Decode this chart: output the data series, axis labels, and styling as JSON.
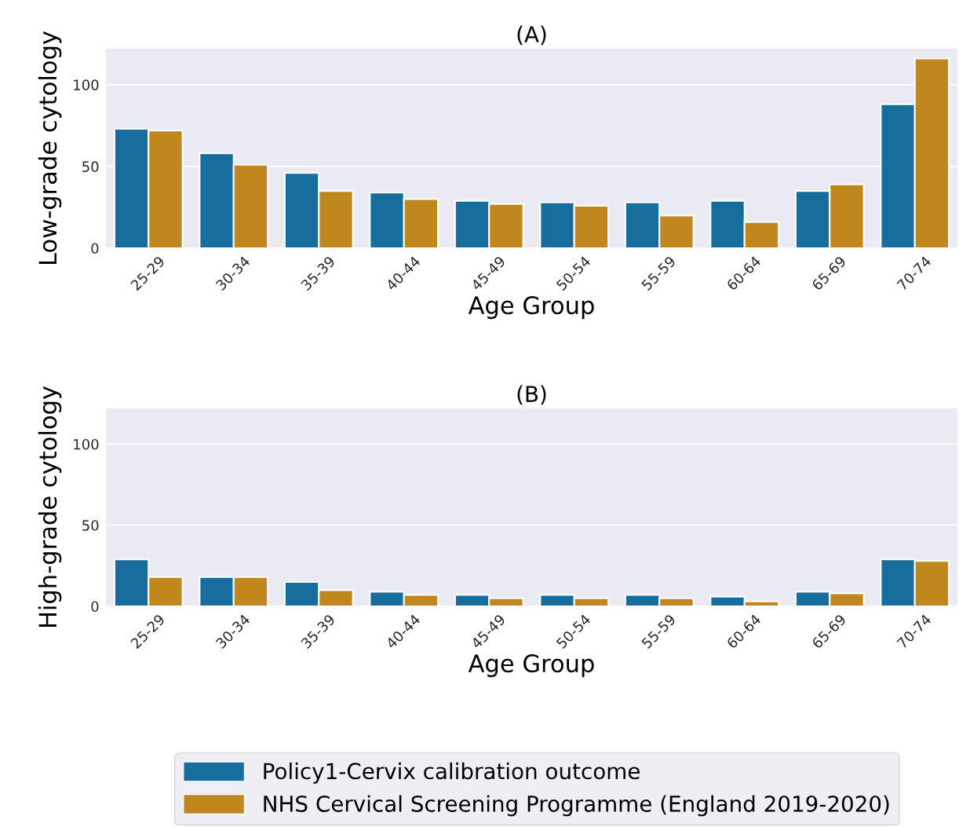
{
  "chart_data": [
    {
      "type": "bar",
      "title": "(A)",
      "xlabel": "Age Group",
      "ylabel": "Low-grade cytology",
      "categories": [
        "25-29",
        "30-34",
        "35-39",
        "40-44",
        "45-49",
        "50-54",
        "55-59",
        "60-64",
        "65-69",
        "70-74"
      ],
      "series": [
        {
          "color": "#176d9c",
          "values": [
            73,
            58,
            46,
            34,
            29,
            28,
            28,
            29,
            35,
            88
          ]
        },
        {
          "color": "#c0871f",
          "values": [
            72,
            51,
            35,
            30,
            27,
            26,
            20,
            16,
            39,
            116
          ]
        }
      ],
      "ylim": [
        0,
        122
      ],
      "yticks": [
        0,
        50,
        100
      ],
      "grid": "y"
    },
    {
      "type": "bar",
      "title": "(B)",
      "xlabel": "Age Group",
      "ylabel": "High-grade cytology",
      "categories": [
        "25-29",
        "30-34",
        "35-39",
        "40-44",
        "45-49",
        "50-54",
        "55-59",
        "60-64",
        "65-69",
        "70-74"
      ],
      "series": [
        {
          "name": "Policy1-Cervix calibration outcome",
          "color": "#176d9c",
          "values": [
            29,
            18,
            15,
            9,
            7,
            7,
            7,
            6,
            9,
            29
          ]
        },
        {
          "name": "NHS Cervical Screening Programme (England 2019-2020)",
          "color": "#c0871f",
          "values": [
            18,
            18,
            10,
            7,
            5,
            5,
            5,
            3,
            8,
            28
          ]
        }
      ],
      "ylim": [
        0,
        122
      ],
      "yticks": [
        0,
        50,
        100
      ],
      "grid": "y",
      "legend": "bottom"
    }
  ]
}
